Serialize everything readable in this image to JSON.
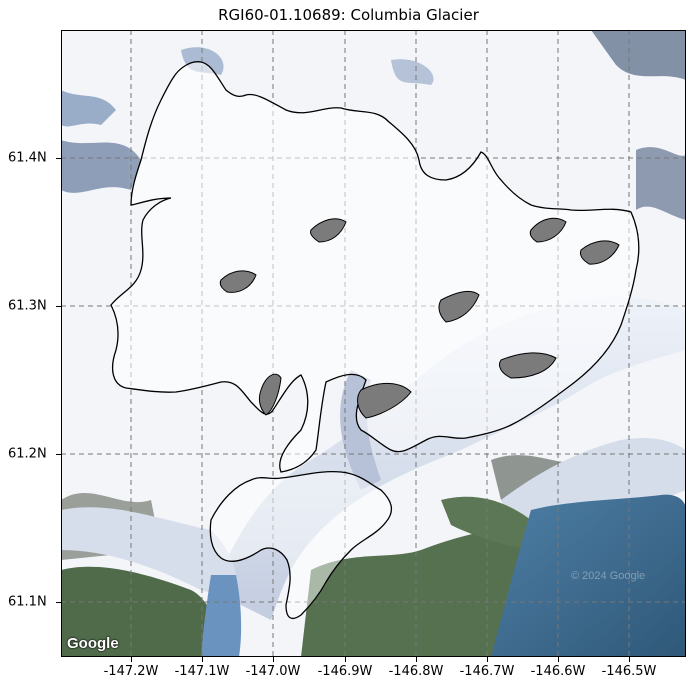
{
  "title": "RGI60-01.10689: Columbia Glacier",
  "attribution": "Google",
  "imagery_credit": "© 2024 Google",
  "axes": {
    "x_ticks": [
      "-147.2W",
      "-147.1W",
      "-147.0W",
      "-146.9W",
      "-146.8W",
      "-146.7W",
      "-146.6W",
      "-146.5W"
    ],
    "y_ticks": [
      "61.4N",
      "61.3N",
      "61.2N",
      "61.1N"
    ],
    "grid": true,
    "grid_style": "dashed"
  },
  "colors": {
    "outline": "#000000",
    "grid": "#777777",
    "snow": "#f2f5fa",
    "ice": "#c9d3e6",
    "rock": "#6f6f6f",
    "forest": "#4d6a4a",
    "water": "#3d6b90"
  }
}
